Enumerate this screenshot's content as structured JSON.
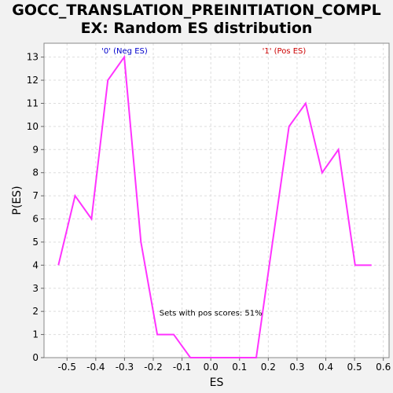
{
  "chart_data": {
    "type": "line",
    "title_line1": "GOCC_TRANSLATION_PREINITIATION_COMPL",
    "title_line2": "EX: Random ES distribution",
    "xlabel": "ES",
    "ylabel": "P(ES)",
    "xlim": [
      -0.58,
      0.62
    ],
    "ylim": [
      0,
      13.6
    ],
    "xticks": [
      -0.5,
      -0.4,
      -0.3,
      -0.2,
      -0.1,
      0.0,
      0.1,
      0.2,
      0.3,
      0.4,
      0.5,
      0.6
    ],
    "yticks": [
      0,
      1,
      2,
      3,
      4,
      5,
      6,
      7,
      8,
      9,
      10,
      11,
      12,
      13
    ],
    "grid": true,
    "series": [
      {
        "color": "#ff33ff",
        "x": [
          -0.53,
          -0.472,
          -0.415,
          -0.358,
          -0.301,
          -0.243,
          -0.186,
          -0.129,
          -0.071,
          -0.014,
          0.043,
          0.1,
          0.158,
          0.215,
          0.272,
          0.33,
          0.387,
          0.444,
          0.502,
          0.559
        ],
        "y": [
          4,
          7,
          6,
          12,
          13,
          5,
          1,
          1,
          0,
          0,
          0,
          0,
          0,
          5,
          10,
          11,
          8,
          9,
          4,
          4
        ]
      }
    ],
    "annotations": [
      {
        "text": "'0' (Neg ES)",
        "color": "#0000cc",
        "x": -0.3,
        "y": 13.3
      },
      {
        "text": "'1' (Pos ES)",
        "color": "#cc0000",
        "x": 0.255,
        "y": 13.3
      },
      {
        "text": "Sets with pos scores: 51%",
        "color": "#000000",
        "x": 0.0,
        "y": 1.95
      }
    ]
  }
}
